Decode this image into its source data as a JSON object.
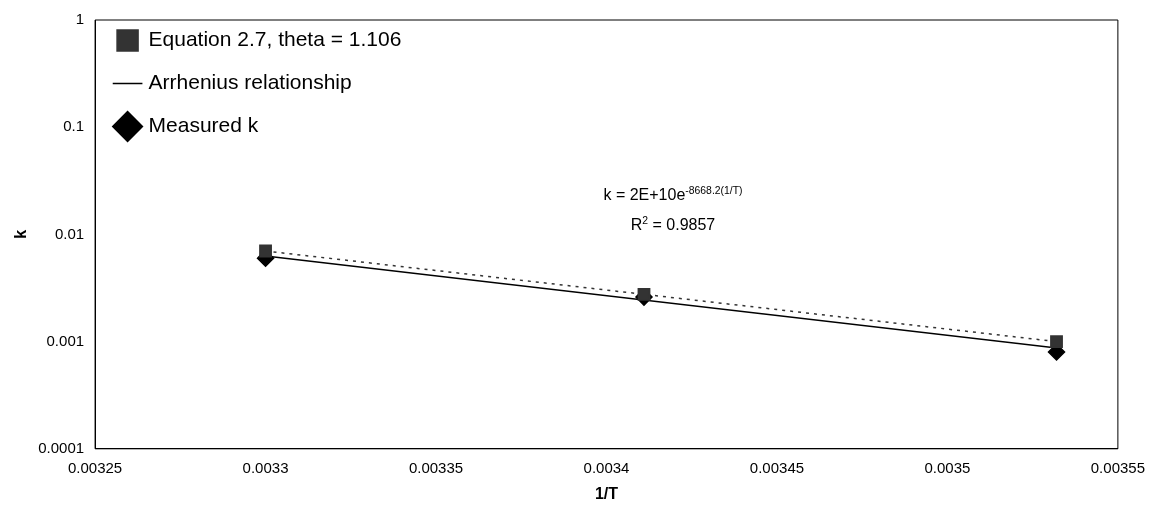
{
  "chart_data": {
    "type": "scatter",
    "xlabel": "1/T",
    "ylabel": "k",
    "log": "y",
    "grid": false,
    "legend": "top left",
    "xlim": [
      0.00325,
      0.00355
    ],
    "xticks": [
      0.00325,
      0.0033,
      0.00335,
      0.0034,
      0.00345,
      0.0035,
      0.00355
    ],
    "ylim": [
      0.0001,
      1
    ],
    "yticks": [
      0.0001,
      0.001,
      0.01,
      0.1,
      1
    ],
    "series": [
      {
        "name": "Measured k",
        "type": "scatter",
        "color": "#000000",
        "marker": "diamond",
        "x": [
          0.0033,
          0.003411,
          0.003532
        ],
        "values": [
          0.006,
          0.0026,
          0.0008
        ]
      },
      {
        "name": "Equation 2.7, theta = 1.106",
        "type": "line",
        "color": "#333333",
        "marker": "square",
        "line_style": "dotted",
        "x": [
          0.0033,
          0.003411,
          0.003532
        ],
        "values": [
          0.007,
          0.00276,
          0.001
        ]
      },
      {
        "name": "Arrhenius relationship",
        "type": "line",
        "color": "#000000",
        "marker": "none",
        "line_style": "solid",
        "x": [
          0.0033,
          0.003532
        ],
        "values": [
          0.0063,
          0.00087
        ]
      }
    ],
    "annotations": [
      "k = 2E+10e$^{-8668.2(1/T)}$",
      "R$^{2}$ = 0.9857"
    ]
  }
}
